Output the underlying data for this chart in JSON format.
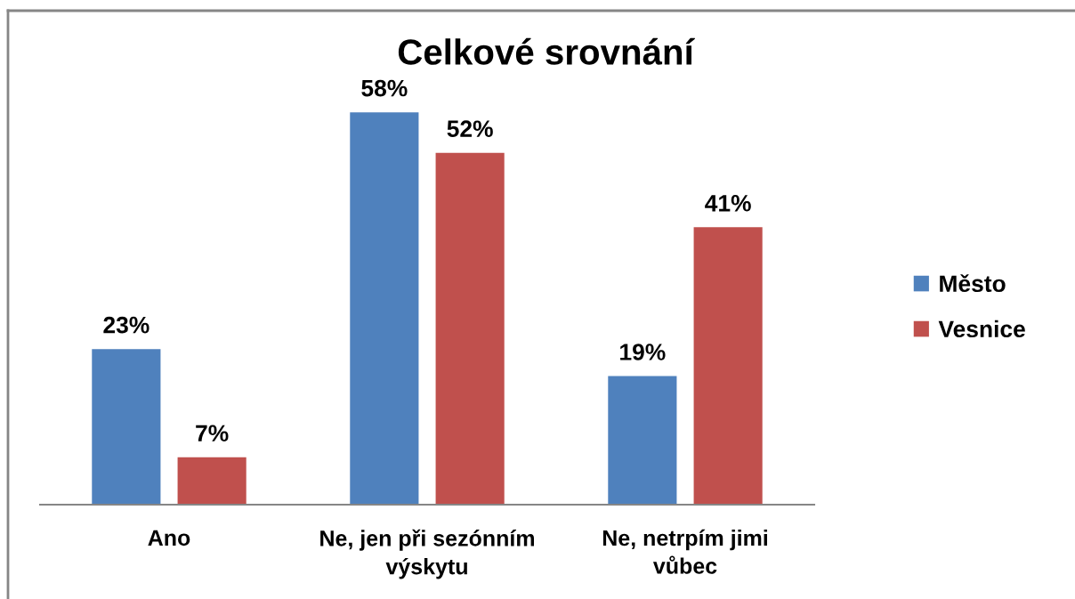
{
  "chart_data": {
    "type": "bar",
    "title": "Celkové srovnání",
    "categories": [
      "Ano",
      "Ne, jen při sezónním výskytu",
      "Ne, netrpím jimi vůbec"
    ],
    "series": [
      {
        "name": "Město",
        "color": "#4f81bd",
        "values": [
          23,
          58,
          19
        ],
        "value_labels": [
          "23%",
          "58%",
          "19%"
        ]
      },
      {
        "name": "Vesnice",
        "color": "#c0504d",
        "values": [
          7,
          52,
          41
        ],
        "value_labels": [
          "7%",
          "52%",
          "41%"
        ]
      }
    ],
    "legend": "right",
    "grid": false
  }
}
